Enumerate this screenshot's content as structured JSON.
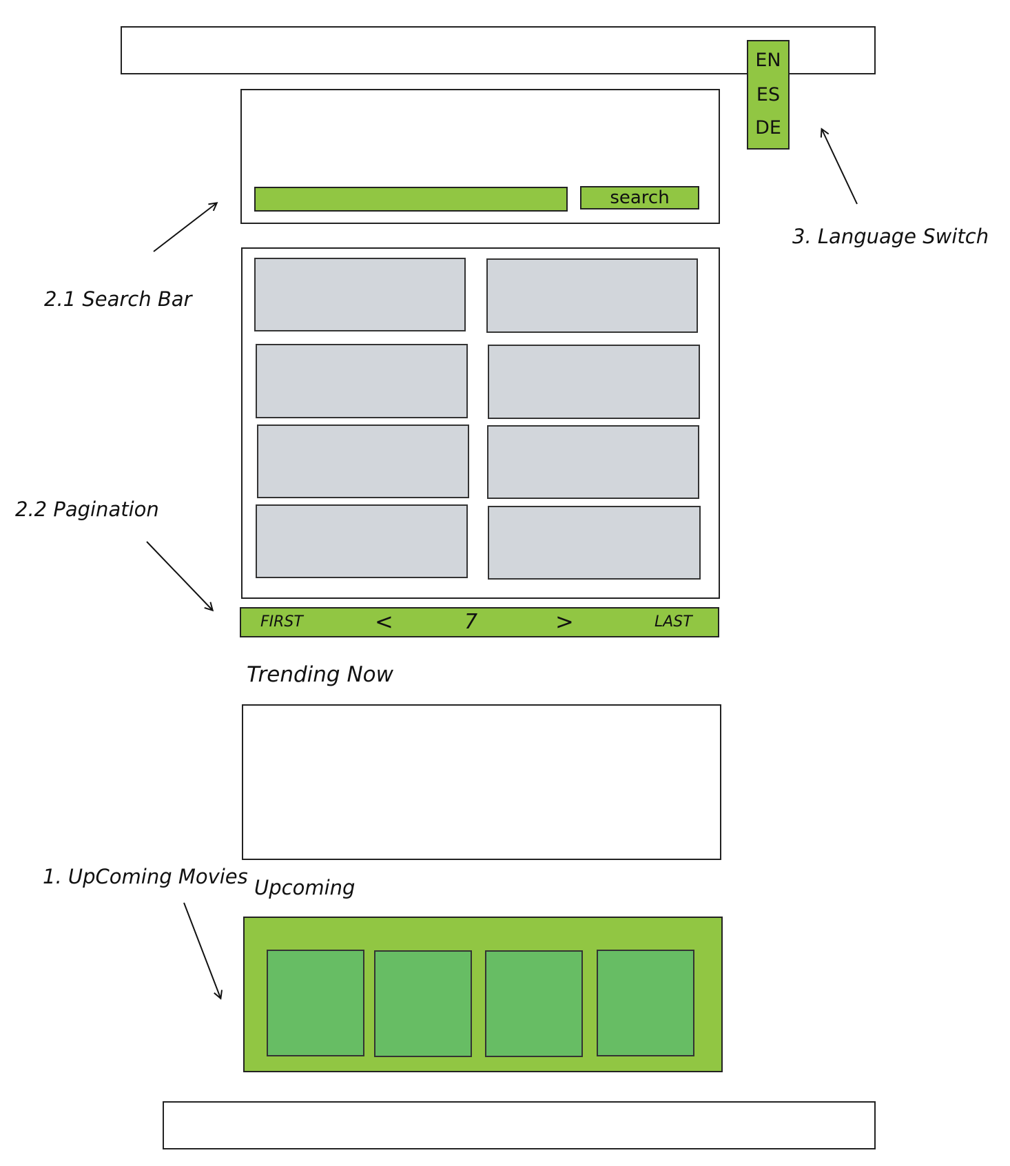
{
  "language_switch": {
    "items": [
      "EN",
      "ES",
      "DE"
    ]
  },
  "search": {
    "button_label": "search",
    "placeholder": ""
  },
  "pagination": {
    "first": "FIRST",
    "prev": "<",
    "current": "7",
    "next": ">",
    "last": "LAST"
  },
  "sections": {
    "trending_title": "Trending Now",
    "upcoming_title": "Upcoming"
  },
  "annotations": {
    "search_bar": "2.1 Search Bar",
    "pagination": "2.2 Pagination",
    "language_switch": "3. Language Switch",
    "upcoming_movies": "1. UpComing Movies"
  },
  "colors": {
    "accent_green": "#91c643",
    "tile_green": "#67bd64",
    "tile_gray": "#d2d6db"
  }
}
